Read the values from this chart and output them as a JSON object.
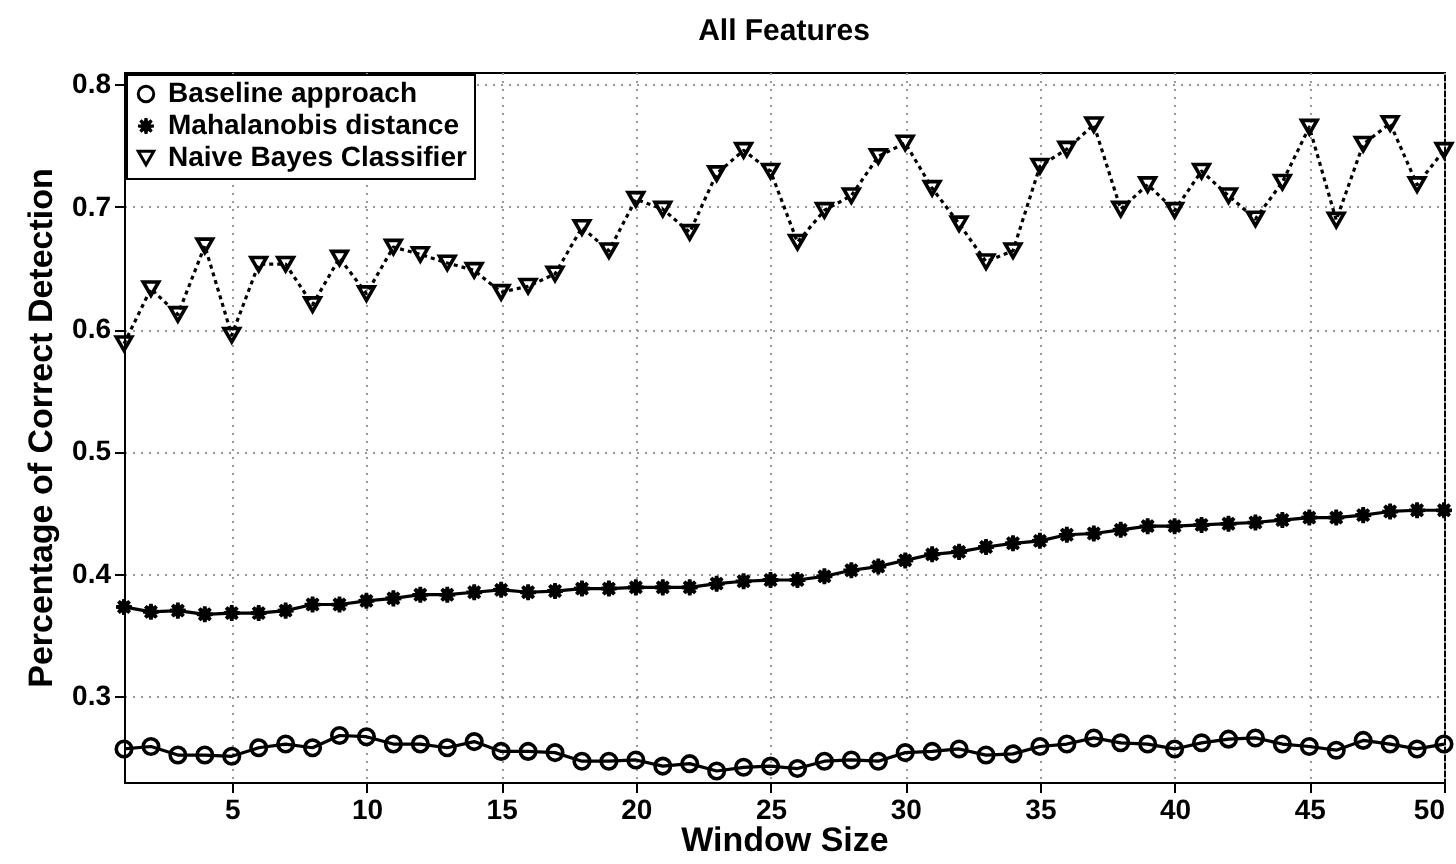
{
  "chart_data": {
    "type": "line",
    "title": "All Features",
    "xlabel": "Window Size",
    "ylabel": "Percentage of Correct Detection",
    "x": [
      1,
      2,
      3,
      4,
      5,
      6,
      7,
      8,
      9,
      10,
      11,
      12,
      13,
      14,
      15,
      16,
      17,
      18,
      19,
      20,
      21,
      22,
      23,
      24,
      25,
      26,
      27,
      28,
      29,
      30,
      31,
      32,
      33,
      34,
      35,
      36,
      37,
      38,
      39,
      40,
      41,
      42,
      43,
      44,
      45,
      46,
      47,
      48,
      49,
      50
    ],
    "xlim": [
      1,
      50
    ],
    "xticks": [
      5,
      10,
      15,
      20,
      25,
      30,
      35,
      40,
      45,
      50
    ],
    "ylim": [
      0.23,
      0.81
    ],
    "yticks": [
      0.3,
      0.4,
      0.5,
      0.6,
      0.7,
      0.8
    ],
    "grid": true,
    "legend": "top left",
    "series": [
      {
        "name": "Baseline approach",
        "color": "#000000",
        "marker": "circle",
        "line_style": "solid",
        "values": [
          0.257,
          0.259,
          0.252,
          0.252,
          0.251,
          0.258,
          0.261,
          0.258,
          0.268,
          0.267,
          0.261,
          0.261,
          0.258,
          0.263,
          0.255,
          0.255,
          0.254,
          0.247,
          0.247,
          0.248,
          0.243,
          0.245,
          0.239,
          0.242,
          0.243,
          0.241,
          0.247,
          0.248,
          0.247,
          0.254,
          0.255,
          0.257,
          0.252,
          0.253,
          0.259,
          0.261,
          0.266,
          0.262,
          0.261,
          0.257,
          0.262,
          0.265,
          0.266,
          0.261,
          0.259,
          0.256,
          0.264,
          0.261,
          0.257,
          0.261
        ]
      },
      {
        "name": "Mahalanobis distance",
        "color": "#000000",
        "marker": "star",
        "line_style": "solid",
        "values": [
          0.373,
          0.369,
          0.37,
          0.367,
          0.368,
          0.368,
          0.37,
          0.375,
          0.375,
          0.378,
          0.38,
          0.383,
          0.383,
          0.385,
          0.387,
          0.385,
          0.386,
          0.388,
          0.388,
          0.389,
          0.389,
          0.389,
          0.392,
          0.394,
          0.395,
          0.395,
          0.398,
          0.403,
          0.406,
          0.411,
          0.416,
          0.418,
          0.422,
          0.425,
          0.427,
          0.432,
          0.433,
          0.436,
          0.439,
          0.439,
          0.44,
          0.441,
          0.442,
          0.444,
          0.446,
          0.446,
          0.448,
          0.451,
          0.452,
          0.452
        ]
      },
      {
        "name": "Naive Bayes Classifier",
        "color": "#000000",
        "marker": "triangle",
        "line_style": "dotted",
        "values": [
          0.588,
          0.633,
          0.612,
          0.668,
          0.595,
          0.653,
          0.653,
          0.62,
          0.658,
          0.629,
          0.667,
          0.661,
          0.654,
          0.648,
          0.63,
          0.635,
          0.645,
          0.683,
          0.664,
          0.706,
          0.698,
          0.679,
          0.727,
          0.746,
          0.729,
          0.671,
          0.697,
          0.709,
          0.741,
          0.752,
          0.715,
          0.686,
          0.655,
          0.664,
          0.733,
          0.747,
          0.767,
          0.698,
          0.718,
          0.697,
          0.729,
          0.709,
          0.69,
          0.72,
          0.765,
          0.689,
          0.751,
          0.768,
          0.718,
          0.746
        ]
      }
    ]
  }
}
